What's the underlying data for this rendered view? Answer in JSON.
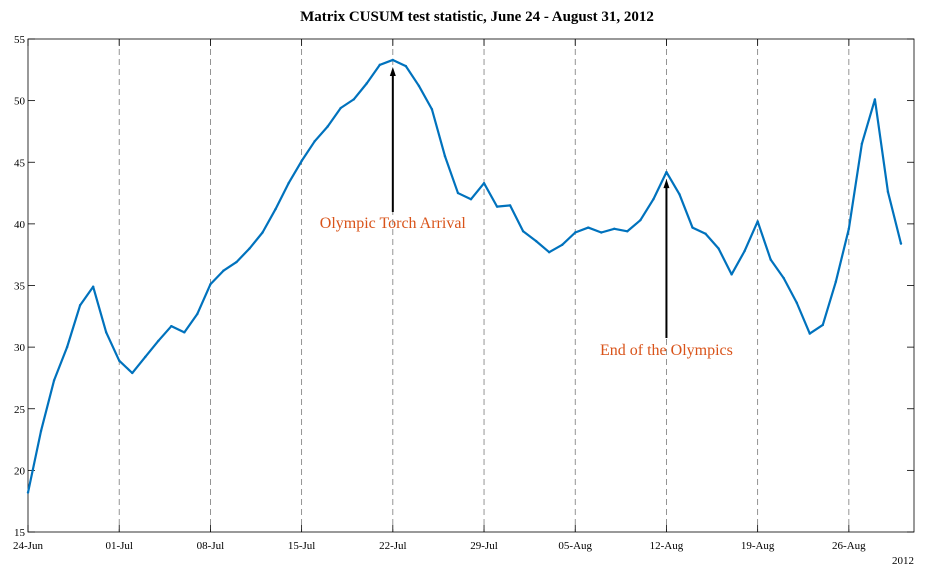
{
  "chart_data": {
    "type": "line",
    "title": "Matrix CUSUM test statistic, June 24 - August 31, 2012",
    "xlabel": "",
    "ylabel": "",
    "x_start": "2012-06-24",
    "x_end": "2012-08-31",
    "xtick_labels": [
      "24-Jun",
      "01-Jul",
      "08-Jul",
      "15-Jul",
      "22-Jul",
      "29-Jul",
      "05-Aug",
      "12-Aug",
      "19-Aug",
      "26-Aug"
    ],
    "x_year_label": "2012",
    "ylim": [
      15,
      55
    ],
    "yticks": [
      15,
      20,
      25,
      30,
      35,
      40,
      45,
      50,
      55
    ],
    "grid": "vertical dashed at weekly ticks",
    "series": [
      {
        "color": "#0072BD",
        "x": [
          "2012-06-24",
          "2012-06-25",
          "2012-06-26",
          "2012-06-27",
          "2012-06-28",
          "2012-06-29",
          "2012-06-30",
          "2012-07-01",
          "2012-07-02",
          "2012-07-03",
          "2012-07-04",
          "2012-07-05",
          "2012-07-06",
          "2012-07-07",
          "2012-07-08",
          "2012-07-09",
          "2012-07-10",
          "2012-07-11",
          "2012-07-12",
          "2012-07-13",
          "2012-07-14",
          "2012-07-15",
          "2012-07-16",
          "2012-07-17",
          "2012-07-18",
          "2012-07-19",
          "2012-07-20",
          "2012-07-21",
          "2012-07-22",
          "2012-07-23",
          "2012-07-24",
          "2012-07-25",
          "2012-07-26",
          "2012-07-27",
          "2012-07-28",
          "2012-07-29",
          "2012-07-30",
          "2012-07-31",
          "2012-08-01",
          "2012-08-02",
          "2012-08-03",
          "2012-08-04",
          "2012-08-05",
          "2012-08-06",
          "2012-08-07",
          "2012-08-08",
          "2012-08-09",
          "2012-08-10",
          "2012-08-11",
          "2012-08-12",
          "2012-08-13",
          "2012-08-14",
          "2012-08-15",
          "2012-08-16",
          "2012-08-17",
          "2012-08-18",
          "2012-08-19",
          "2012-08-20",
          "2012-08-21",
          "2012-08-22",
          "2012-08-23",
          "2012-08-24",
          "2012-08-25",
          "2012-08-26",
          "2012-08-27",
          "2012-08-28",
          "2012-08-29",
          "2012-08-30"
        ],
        "y": [
          18.2,
          23.2,
          27.3,
          30.0,
          33.4,
          34.9,
          31.2,
          28.9,
          27.9,
          29.2,
          30.5,
          31.7,
          31.2,
          32.7,
          35.1,
          36.2,
          36.9,
          38.0,
          39.3,
          41.2,
          43.3,
          45.1,
          46.7,
          47.9,
          49.4,
          50.1,
          51.4,
          52.9,
          53.3,
          52.8,
          51.2,
          49.3,
          45.5,
          42.5,
          42.0,
          43.3,
          41.4,
          41.5,
          39.4,
          38.6,
          37.7,
          38.3,
          39.3,
          39.7,
          39.3,
          39.6,
          39.4,
          40.3,
          42.0,
          44.2,
          42.4,
          39.7,
          39.2,
          38.0,
          35.9,
          37.8,
          40.2,
          37.1,
          35.6,
          33.6,
          31.1,
          31.8,
          35.3,
          39.6,
          46.5,
          50.1,
          42.6,
          38.4
        ]
      }
    ],
    "annotations": [
      {
        "text": "Olympic Torch Arrival",
        "x": "2012-07-22",
        "y": 53.3,
        "color": "#D95319"
      },
      {
        "text": "End of the Olympics",
        "x": "2012-08-12",
        "y": 44.2,
        "color": "#D95319"
      }
    ]
  }
}
